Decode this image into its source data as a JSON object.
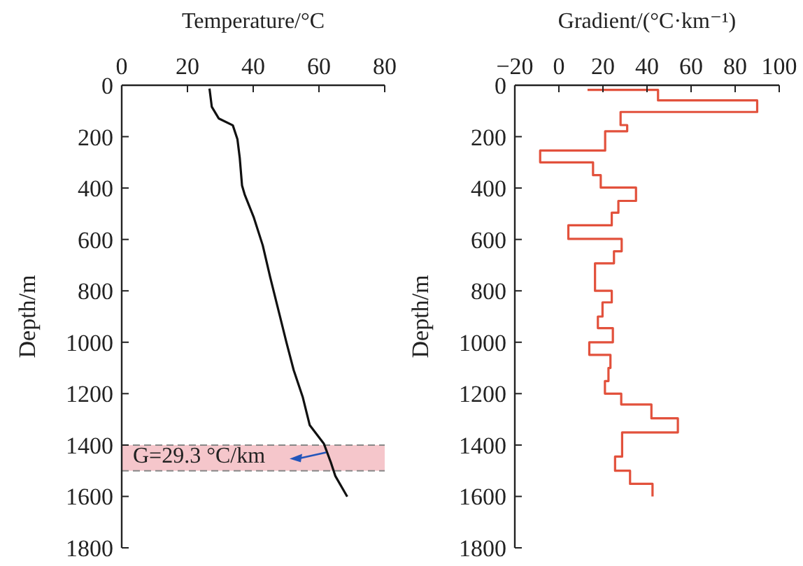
{
  "chart_data": [
    {
      "type": "line",
      "xlabel": "Temperature/°C",
      "ylabel": "Depth/m",
      "xlim": [
        0,
        80
      ],
      "xticks": [
        0,
        20,
        40,
        60,
        80
      ],
      "ylim": [
        1800,
        0
      ],
      "yticks": [
        0,
        200,
        400,
        600,
        800,
        1000,
        1200,
        1400,
        1600,
        1800
      ],
      "marker": "none",
      "line_style": "solid",
      "series": [
        {
          "color": "#111111",
          "x": [
            26.7,
            27.4,
            29.5,
            33.8,
            35.2,
            35.9,
            36.6,
            37.4,
            40.2,
            42.9,
            45.2,
            48,
            50.1,
            52.3,
            55.1,
            57.2,
            61.5,
            63.6,
            65,
            68.6
          ],
          "values": [
            13,
            84,
            129,
            156,
            210,
            282,
            390,
            425,
            515,
            623,
            749,
            892,
            1000,
            1108,
            1215,
            1323,
            1395,
            1467,
            1521,
            1601
          ]
        }
      ],
      "bands": [
        {
          "axis": "y",
          "from": 1400,
          "to": 1500,
          "color": "#f5c6cb"
        }
      ],
      "annotations": [
        {
          "text": "G=29.3 °C/km",
          "x": 63,
          "y": 1440
        }
      ]
    },
    {
      "type": "line",
      "xlabel": "Gradient/(°C·km⁻¹)",
      "ylabel": "Depth/m",
      "xlim": [
        -20,
        100
      ],
      "xticks": [
        {
          "value": -20,
          "label": "−20"
        },
        0,
        20,
        40,
        60,
        80,
        100
      ],
      "ylim": [
        1800,
        0
      ],
      "yticks": [
        0,
        200,
        400,
        600,
        800,
        1000,
        1200,
        1400,
        1600,
        1800
      ],
      "marker": "none",
      "line_style": "solid",
      "series": [
        {
          "color": "#e2513c",
          "x": [
            13,
            45,
            45,
            90,
            90,
            28,
            28,
            31,
            31,
            21,
            21,
            -8.5,
            -8.5,
            15.5,
            15.5,
            19,
            19,
            35,
            35,
            27,
            27,
            24,
            24,
            4.3,
            4.3,
            28.5,
            28.5,
            25,
            25,
            16.4,
            16.4,
            24,
            24,
            19.8,
            19.8,
            17.7,
            17.7,
            24.5,
            24.5,
            13.8,
            13.8,
            23.4,
            23.4,
            22.5,
            22.5,
            20.9,
            20.9,
            28.3,
            28.3,
            42,
            42,
            54,
            54,
            28.7,
            28.7,
            25.5,
            25.5,
            32.3,
            32.3,
            42.5,
            42.5
          ],
          "values": [
            18,
            18,
            59,
            59,
            104,
            104,
            155,
            155,
            179,
            179,
            254,
            254,
            300,
            300,
            350,
            350,
            398,
            398,
            450,
            450,
            496,
            496,
            545,
            545,
            598,
            598,
            646,
            646,
            693,
            693,
            800,
            800,
            845,
            845,
            900,
            900,
            945,
            945,
            1000,
            1000,
            1049,
            1049,
            1100,
            1100,
            1151,
            1151,
            1200,
            1200,
            1242,
            1242,
            1296,
            1296,
            1351,
            1351,
            1445,
            1445,
            1500,
            1500,
            1551,
            1551,
            1600
          ]
        }
      ]
    }
  ]
}
